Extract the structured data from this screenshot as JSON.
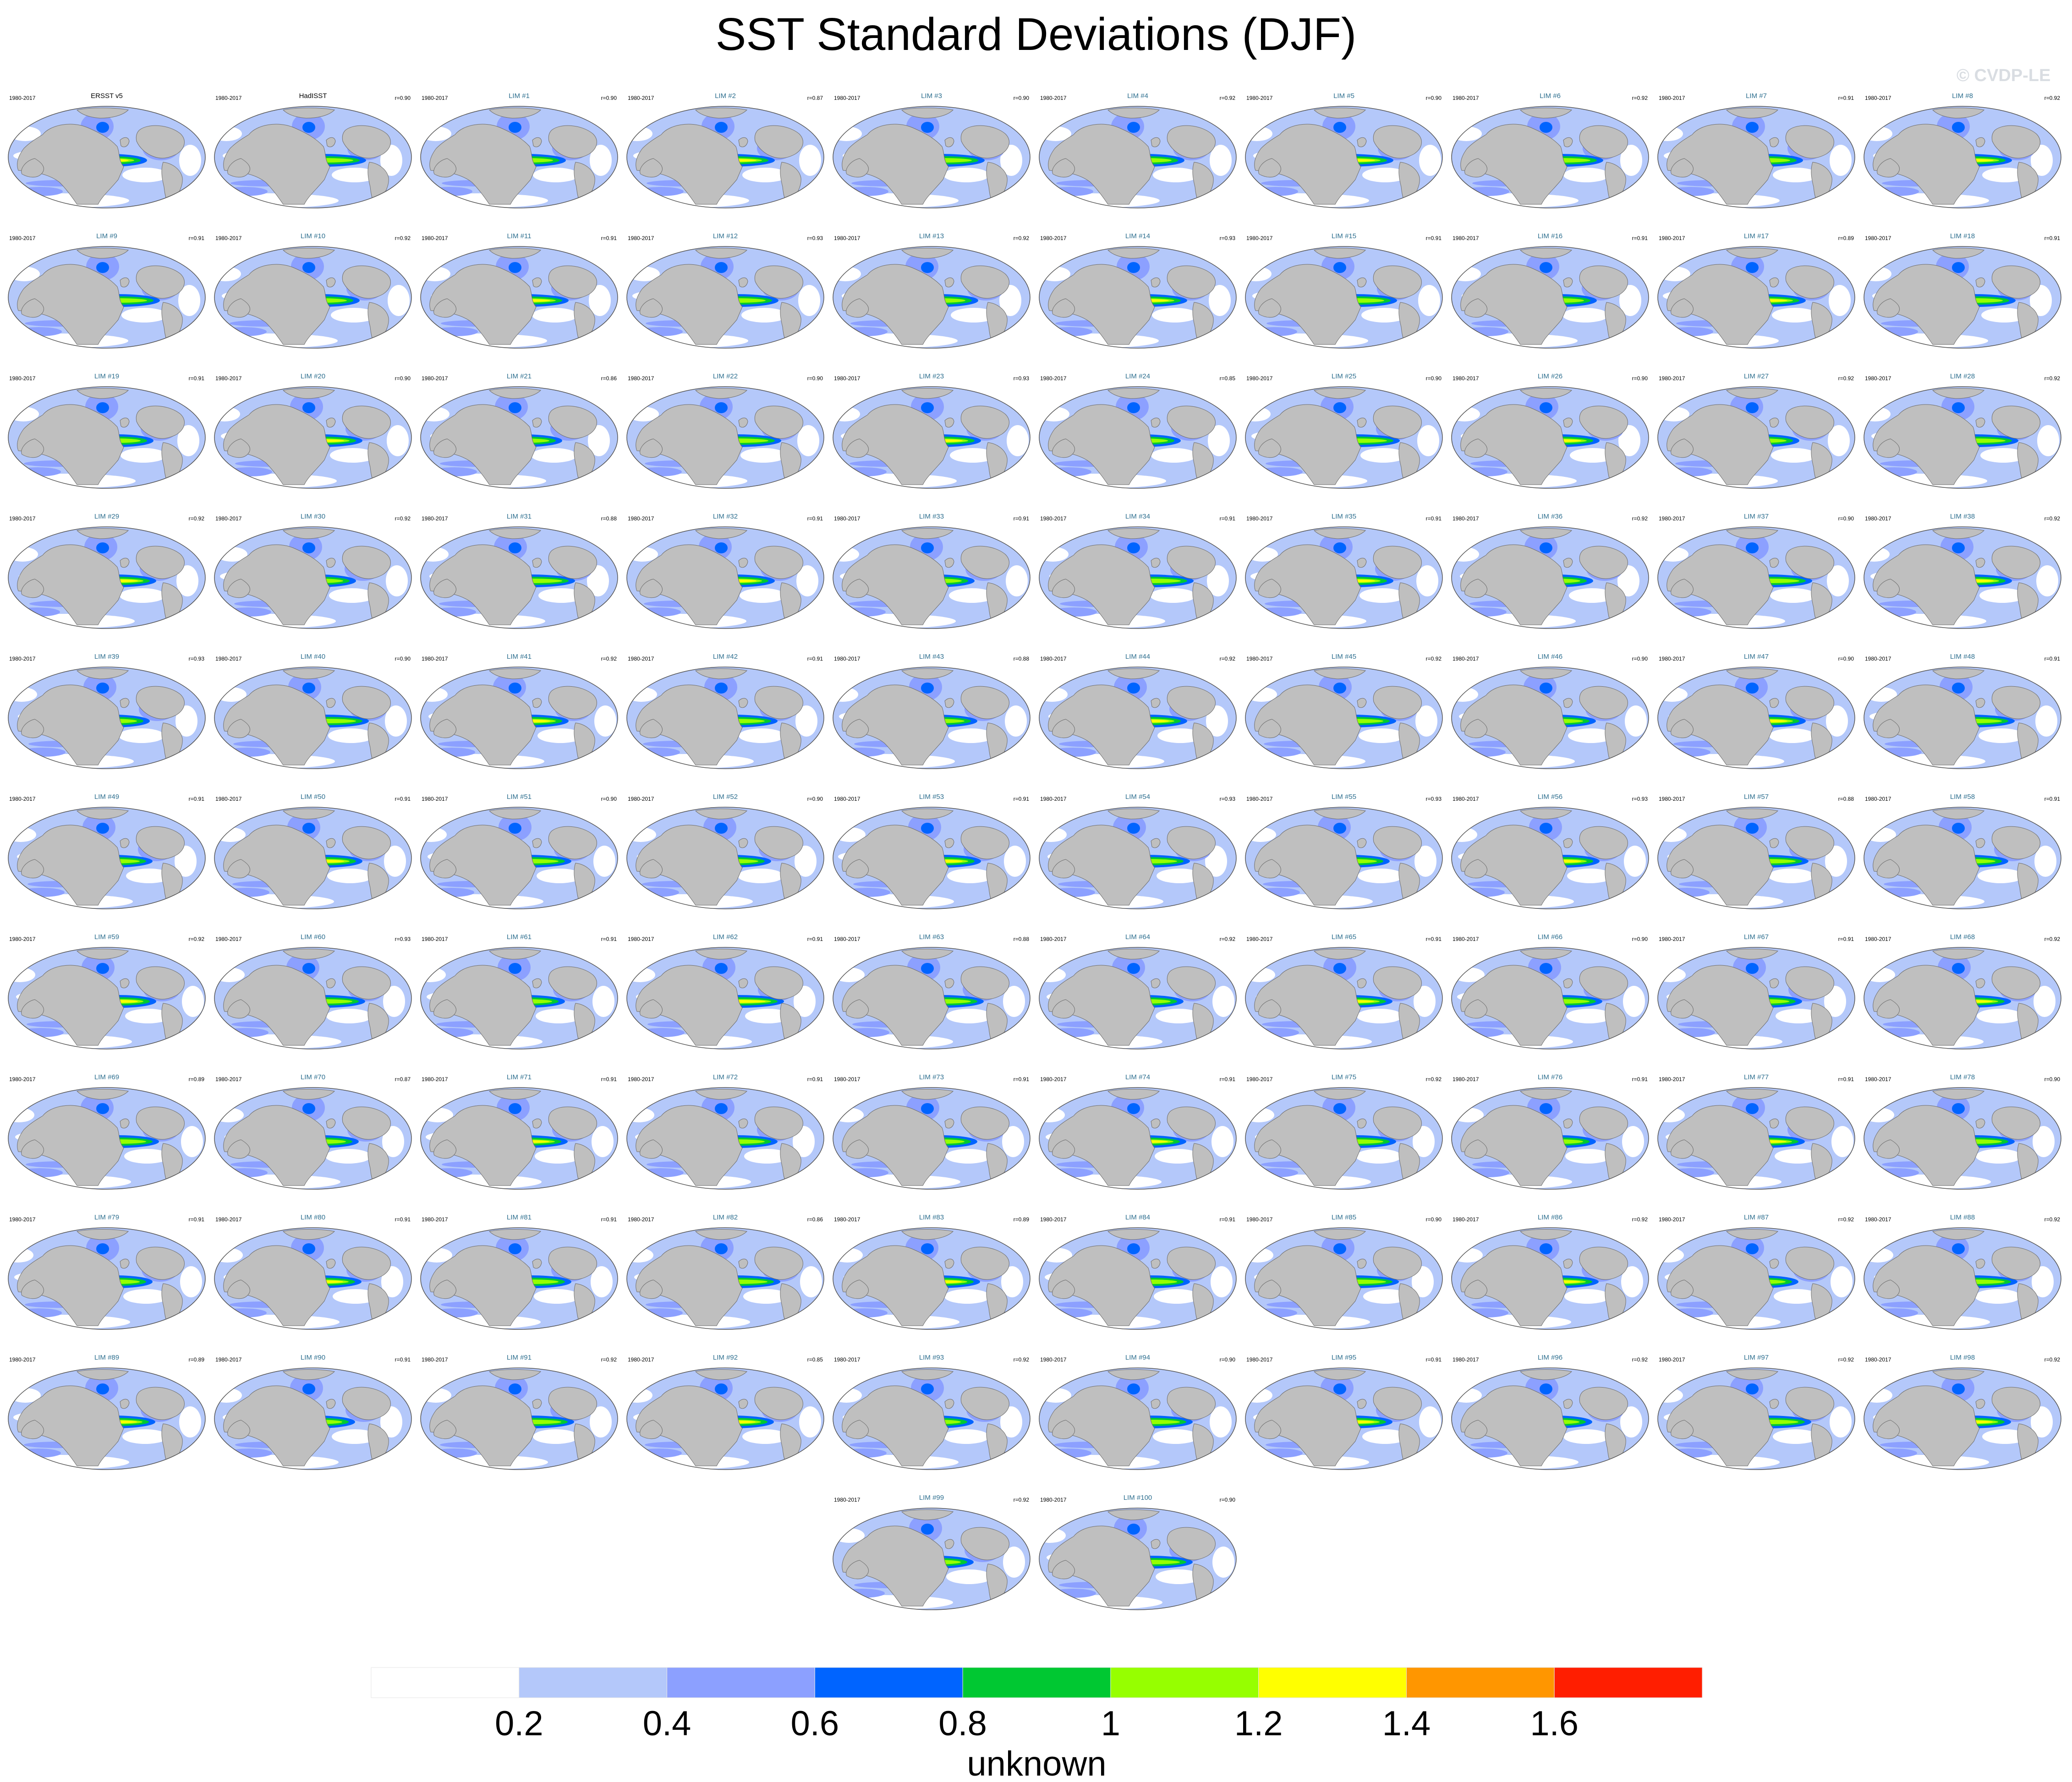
{
  "chart_data": {
    "type": "heatmap",
    "title": "SST Standard Deviations (DJF)",
    "credit": "© CVDP-LE",
    "period": "1980-2017",
    "colorbar": {
      "label": "unknown",
      "tick_labels": [
        "0.2",
        "0.4",
        "0.6",
        "0.8",
        "1",
        "1.2",
        "1.4",
        "1.6"
      ],
      "levels": [
        0.2,
        0.4,
        0.6,
        0.8,
        1.0,
        1.2,
        1.4,
        1.6
      ],
      "colors": [
        "#ffffff",
        "#b4c8fa",
        "#8ca0ff",
        "#0064ff",
        "#00c832",
        "#96ff00",
        "#ffff00",
        "#ff9600",
        "#ff1e00"
      ]
    },
    "observations": [
      {
        "name": "ERSST v5",
        "period": "1980-2017"
      },
      {
        "name": "HadISST",
        "period": "1980-2017",
        "r": "r=0.90"
      }
    ],
    "members": [
      {
        "name": "LIM #1",
        "r": "r=0.90"
      },
      {
        "name": "LIM #2",
        "r": "r=0.87"
      },
      {
        "name": "LIM #3",
        "r": "r=0.90"
      },
      {
        "name": "LIM #4",
        "r": "r=0.92"
      },
      {
        "name": "LIM #5",
        "r": "r=0.90"
      },
      {
        "name": "LIM #6",
        "r": "r=0.92"
      },
      {
        "name": "LIM #7",
        "r": "r=0.91"
      },
      {
        "name": "LIM #8",
        "r": "r=0.92"
      },
      {
        "name": "LIM #9",
        "r": "r=0.91"
      },
      {
        "name": "LIM #10",
        "r": "r=0.92"
      },
      {
        "name": "LIM #11",
        "r": "r=0.91"
      },
      {
        "name": "LIM #12",
        "r": "r=0.93"
      },
      {
        "name": "LIM #13",
        "r": "r=0.92"
      },
      {
        "name": "LIM #14",
        "r": "r=0.93"
      },
      {
        "name": "LIM #15",
        "r": "r=0.91"
      },
      {
        "name": "LIM #16",
        "r": "r=0.91"
      },
      {
        "name": "LIM #17",
        "r": "r=0.89"
      },
      {
        "name": "LIM #18",
        "r": "r=0.91"
      },
      {
        "name": "LIM #19",
        "r": "r=0.91"
      },
      {
        "name": "LIM #20",
        "r": "r=0.90"
      },
      {
        "name": "LIM #21",
        "r": "r=0.86"
      },
      {
        "name": "LIM #22",
        "r": "r=0.90"
      },
      {
        "name": "LIM #23",
        "r": "r=0.93"
      },
      {
        "name": "LIM #24",
        "r": "r=0.85"
      },
      {
        "name": "LIM #25",
        "r": "r=0.90"
      },
      {
        "name": "LIM #26",
        "r": "r=0.90"
      },
      {
        "name": "LIM #27",
        "r": "r=0.92"
      },
      {
        "name": "LIM #28",
        "r": "r=0.92"
      },
      {
        "name": "LIM #29",
        "r": "r=0.92"
      },
      {
        "name": "LIM #30",
        "r": "r=0.92"
      },
      {
        "name": "LIM #31",
        "r": "r=0.88"
      },
      {
        "name": "LIM #32",
        "r": "r=0.91"
      },
      {
        "name": "LIM #33",
        "r": "r=0.91"
      },
      {
        "name": "LIM #34",
        "r": "r=0.91"
      },
      {
        "name": "LIM #35",
        "r": "r=0.91"
      },
      {
        "name": "LIM #36",
        "r": "r=0.92"
      },
      {
        "name": "LIM #37",
        "r": "r=0.90"
      },
      {
        "name": "LIM #38",
        "r": "r=0.92"
      },
      {
        "name": "LIM #39",
        "r": "r=0.93"
      },
      {
        "name": "LIM #40",
        "r": "r=0.90"
      },
      {
        "name": "LIM #41",
        "r": "r=0.92"
      },
      {
        "name": "LIM #42",
        "r": "r=0.91"
      },
      {
        "name": "LIM #43",
        "r": "r=0.88"
      },
      {
        "name": "LIM #44",
        "r": "r=0.92"
      },
      {
        "name": "LIM #45",
        "r": "r=0.92"
      },
      {
        "name": "LIM #46",
        "r": "r=0.90"
      },
      {
        "name": "LIM #47",
        "r": "r=0.90"
      },
      {
        "name": "LIM #48",
        "r": "r=0.91"
      },
      {
        "name": "LIM #49",
        "r": "r=0.91"
      },
      {
        "name": "LIM #50",
        "r": "r=0.91"
      },
      {
        "name": "LIM #51",
        "r": "r=0.90"
      },
      {
        "name": "LIM #52",
        "r": "r=0.90"
      },
      {
        "name": "LIM #53",
        "r": "r=0.91"
      },
      {
        "name": "LIM #54",
        "r": "r=0.93"
      },
      {
        "name": "LIM #55",
        "r": "r=0.93"
      },
      {
        "name": "LIM #56",
        "r": "r=0.93"
      },
      {
        "name": "LIM #57",
        "r": "r=0.88"
      },
      {
        "name": "LIM #58",
        "r": "r=0.91"
      },
      {
        "name": "LIM #59",
        "r": "r=0.92"
      },
      {
        "name": "LIM #60",
        "r": "r=0.93"
      },
      {
        "name": "LIM #61",
        "r": "r=0.91"
      },
      {
        "name": "LIM #62",
        "r": "r=0.91"
      },
      {
        "name": "LIM #63",
        "r": "r=0.88"
      },
      {
        "name": "LIM #64",
        "r": "r=0.92"
      },
      {
        "name": "LIM #65",
        "r": "r=0.91"
      },
      {
        "name": "LIM #66",
        "r": "r=0.90"
      },
      {
        "name": "LIM #67",
        "r": "r=0.91"
      },
      {
        "name": "LIM #68",
        "r": "r=0.92"
      },
      {
        "name": "LIM #69",
        "r": "r=0.89"
      },
      {
        "name": "LIM #70",
        "r": "r=0.87"
      },
      {
        "name": "LIM #71",
        "r": "r=0.91"
      },
      {
        "name": "LIM #72",
        "r": "r=0.91"
      },
      {
        "name": "LIM #73",
        "r": "r=0.91"
      },
      {
        "name": "LIM #74",
        "r": "r=0.91"
      },
      {
        "name": "LIM #75",
        "r": "r=0.92"
      },
      {
        "name": "LIM #76",
        "r": "r=0.91"
      },
      {
        "name": "LIM #77",
        "r": "r=0.91"
      },
      {
        "name": "LIM #78",
        "r": "r=0.90"
      },
      {
        "name": "LIM #79",
        "r": "r=0.91"
      },
      {
        "name": "LIM #80",
        "r": "r=0.91"
      },
      {
        "name": "LIM #81",
        "r": "r=0.91"
      },
      {
        "name": "LIM #82",
        "r": "r=0.86"
      },
      {
        "name": "LIM #83",
        "r": "r=0.89"
      },
      {
        "name": "LIM #84",
        "r": "r=0.91"
      },
      {
        "name": "LIM #85",
        "r": "r=0.90"
      },
      {
        "name": "LIM #86",
        "r": "r=0.92"
      },
      {
        "name": "LIM #87",
        "r": "r=0.92"
      },
      {
        "name": "LIM #88",
        "r": "r=0.92"
      },
      {
        "name": "LIM #89",
        "r": "r=0.89"
      },
      {
        "name": "LIM #90",
        "r": "r=0.91"
      },
      {
        "name": "LIM #91",
        "r": "r=0.92"
      },
      {
        "name": "LIM #92",
        "r": "r=0.85"
      },
      {
        "name": "LIM #93",
        "r": "r=0.92"
      },
      {
        "name": "LIM #94",
        "r": "r=0.90"
      },
      {
        "name": "LIM #95",
        "r": "r=0.91"
      },
      {
        "name": "LIM #96",
        "r": "r=0.92"
      },
      {
        "name": "LIM #97",
        "r": "r=0.92"
      },
      {
        "name": "LIM #98",
        "r": "r=0.92"
      },
      {
        "name": "LIM #99",
        "r": "r=0.92"
      },
      {
        "name": "LIM #100",
        "r": "r=0.90"
      }
    ]
  }
}
